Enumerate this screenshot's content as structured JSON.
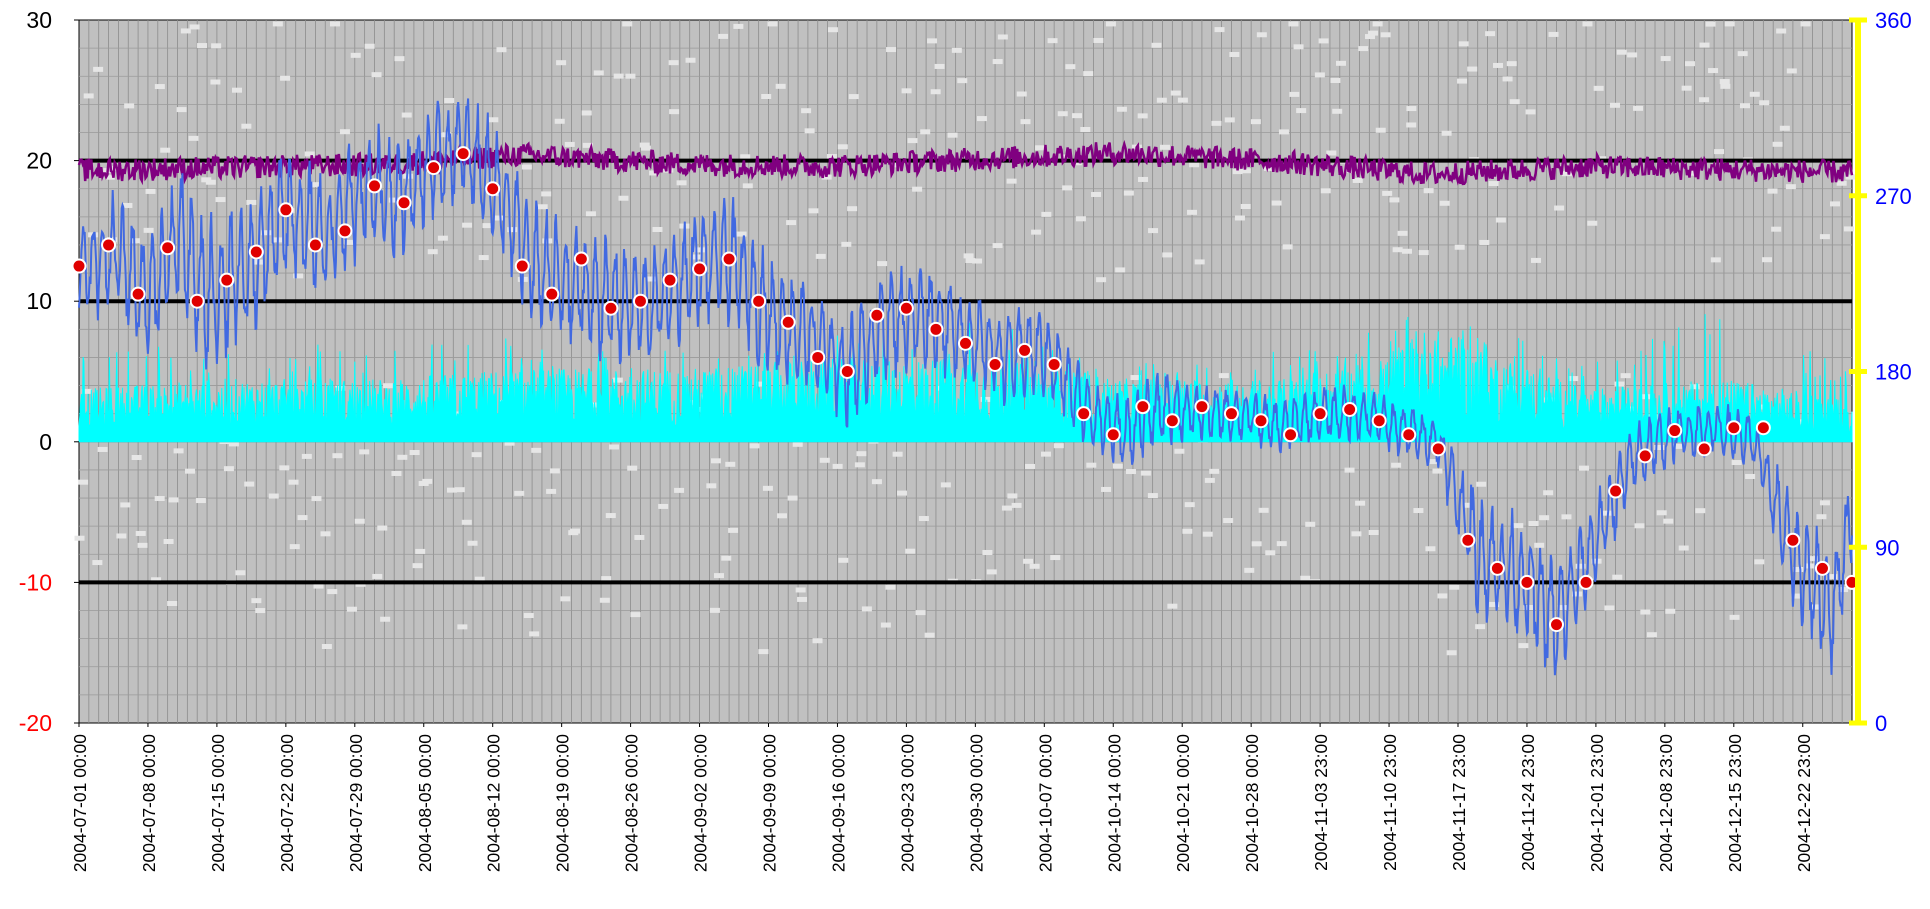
{
  "chart_data": {
    "type": "line",
    "title": "",
    "xlabel": "",
    "ylabel": "",
    "x_start": "2004-07-01",
    "x_end": "2004-12-28",
    "x_tick_labels": [
      "2004-07-01 00:00",
      "2004-07-08 00:00",
      "2004-07-15 00:00",
      "2004-07-22 00:00",
      "2004-07-29 00:00",
      "2004-08-05 00:00",
      "2004-08-12 00:00",
      "2004-08-19 00:00",
      "2004-08-26 00:00",
      "2004-09-02 00:00",
      "2004-09-09 00:00",
      "2004-09-16 00:00",
      "2004-09-23 00:00",
      "2004-09-30 00:00",
      "2004-10-07 00:00",
      "2004-10-14 00:00",
      "2004-10-21 00:00",
      "2004-10-28 00:00",
      "2004-11-03 23:00",
      "2004-11-10 23:00",
      "2004-11-17 23:00",
      "2004-11-24 23:00",
      "2004-12-01 23:00",
      "2004-12-08 23:00",
      "2004-12-15 23:00",
      "2004-12-22 23:00"
    ],
    "y_left": {
      "range": [
        -20,
        30
      ],
      "ticks": [
        {
          "value": 30,
          "label": "30",
          "color": "#000000"
        },
        {
          "value": 20,
          "label": "20",
          "color": "#000000"
        },
        {
          "value": 10,
          "label": "10",
          "color": "#000000"
        },
        {
          "value": 0,
          "label": "0",
          "color": "#000000"
        },
        {
          "value": -10,
          "label": "-10",
          "color": "#ff0000"
        },
        {
          "value": -20,
          "label": "-20",
          "color": "#ff0000"
        }
      ]
    },
    "y_right": {
      "range": [
        0,
        360
      ],
      "color": "#0000ff",
      "axis_color": "#ffff00",
      "ticks": [
        {
          "value": 360,
          "label": "360"
        },
        {
          "value": 270,
          "label": "270"
        },
        {
          "value": 180,
          "label": "180"
        },
        {
          "value": 90,
          "label": "90"
        },
        {
          "value": 0,
          "label": "0"
        }
      ]
    },
    "reference_lines": [
      20,
      10,
      -10
    ],
    "grid": true,
    "legend": "none",
    "colors": {
      "plot_background": "#c0c0c0",
      "temperature": "#4169e1",
      "daily_mean_marker": "#e00000",
      "speed": "#00ffff",
      "direction_upper": "#800080",
      "scatter": "#e6e6e6"
    },
    "series": [
      {
        "kind": "daily_mean_points",
        "axis": "left",
        "x": [
          "2004-07-01",
          "2004-07-04",
          "2004-07-07",
          "2004-07-10",
          "2004-07-13",
          "2004-07-16",
          "2004-07-19",
          "2004-07-22",
          "2004-07-25",
          "2004-07-28",
          "2004-07-31",
          "2004-08-03",
          "2004-08-06",
          "2004-08-09",
          "2004-08-12",
          "2004-08-15",
          "2004-08-18",
          "2004-08-21",
          "2004-08-24",
          "2004-08-27",
          "2004-08-30",
          "2004-09-02",
          "2004-09-05",
          "2004-09-08",
          "2004-09-11",
          "2004-09-14",
          "2004-09-17",
          "2004-09-20",
          "2004-09-23",
          "2004-09-26",
          "2004-09-29",
          "2004-10-02",
          "2004-10-05",
          "2004-10-08",
          "2004-10-11",
          "2004-10-14",
          "2004-10-17",
          "2004-10-20",
          "2004-10-23",
          "2004-10-26",
          "2004-10-29",
          "2004-11-01",
          "2004-11-04",
          "2004-11-07",
          "2004-11-10",
          "2004-11-13",
          "2004-11-16",
          "2004-11-19",
          "2004-11-22",
          "2004-11-25",
          "2004-11-28",
          "2004-12-01",
          "2004-12-04",
          "2004-12-07",
          "2004-12-10",
          "2004-12-13",
          "2004-12-16",
          "2004-12-19",
          "2004-12-22",
          "2004-12-25",
          "2004-12-28"
        ],
        "y": [
          12.5,
          14.0,
          10.5,
          13.8,
          10.0,
          11.5,
          13.5,
          16.5,
          14.0,
          15.0,
          18.2,
          17.0,
          19.5,
          20.5,
          18.0,
          12.5,
          10.5,
          13.0,
          9.5,
          10.0,
          11.5,
          12.3,
          13.0,
          10.0,
          8.5,
          6.0,
          5.0,
          9.0,
          9.5,
          8.0,
          7.0,
          5.5,
          6.5,
          5.5,
          2.0,
          0.5,
          2.5,
          1.5,
          2.5,
          2.0,
          1.5,
          0.5,
          2.0,
          2.3,
          1.5,
          0.5,
          -0.5,
          -7.0,
          -9.0,
          -10.0,
          -13.0,
          -10.0,
          -3.5,
          -1.0,
          0.8,
          -0.5,
          1.0,
          1.0,
          -7.0,
          -9.0,
          -10.0
        ]
      },
      {
        "kind": "hourly_temperature",
        "axis": "left",
        "x": [
          "2004-07-01",
          "2004-07-05",
          "2004-07-08",
          "2004-07-11",
          "2004-07-14",
          "2004-07-18",
          "2004-07-22",
          "2004-07-26",
          "2004-07-30",
          "2004-08-03",
          "2004-08-06",
          "2004-08-09",
          "2004-08-12",
          "2004-08-16",
          "2004-08-20",
          "2004-08-24",
          "2004-08-28",
          "2004-09-01",
          "2004-09-05",
          "2004-09-09",
          "2004-09-13",
          "2004-09-17",
          "2004-09-21",
          "2004-09-25",
          "2004-09-29",
          "2004-10-03",
          "2004-10-07",
          "2004-10-11",
          "2004-10-15",
          "2004-10-19",
          "2004-10-23",
          "2004-10-27",
          "2004-10-31",
          "2004-11-04",
          "2004-11-08",
          "2004-11-12",
          "2004-11-16",
          "2004-11-20",
          "2004-11-24",
          "2004-11-28",
          "2004-12-02",
          "2004-12-06",
          "2004-12-10",
          "2004-12-14",
          "2004-12-18",
          "2004-12-22",
          "2004-12-26",
          "2004-12-28"
        ],
        "y": [
          12.0,
          13.5,
          10.0,
          14.5,
          10.0,
          12.0,
          16.0,
          14.5,
          18.0,
          17.5,
          20.0,
          21.0,
          18.5,
          12.5,
          11.0,
          10.0,
          9.5,
          12.0,
          13.0,
          9.0,
          7.5,
          5.0,
          8.5,
          9.0,
          7.5,
          6.0,
          6.5,
          2.5,
          0.5,
          2.5,
          2.0,
          2.0,
          1.0,
          2.0,
          2.0,
          1.0,
          0.0,
          -8.0,
          -9.5,
          -13.0,
          -7.0,
          -1.0,
          0.5,
          1.0,
          0.0,
          -8.0,
          -12.0,
          -5.0
        ],
        "amplitude": [
          2.5,
          3.5,
          3.5,
          4.0,
          4.5,
          4.0,
          4.0,
          3.5,
          3.5,
          3.5,
          3.0,
          3.0,
          3.5,
          3.5,
          3.5,
          3.5,
          3.0,
          3.5,
          3.5,
          3.5,
          3.0,
          3.0,
          3.0,
          3.0,
          2.5,
          2.5,
          2.5,
          2.0,
          2.0,
          2.0,
          1.5,
          1.5,
          1.5,
          1.5,
          1.5,
          1.5,
          1.5,
          3.5,
          3.5,
          3.5,
          2.5,
          2.0,
          1.5,
          1.5,
          1.5,
          3.0,
          3.5,
          2.5
        ]
      },
      {
        "kind": "wind_speed",
        "axis": "left",
        "baseline": 0,
        "x": [
          "2004-07-01",
          "2004-07-15",
          "2004-08-01",
          "2004-08-15",
          "2004-09-01",
          "2004-09-15",
          "2004-10-01",
          "2004-10-15",
          "2004-11-01",
          "2004-11-10",
          "2004-11-15",
          "2004-12-01",
          "2004-12-15",
          "2004-12-28"
        ],
        "y": [
          2.5,
          3.0,
          3.0,
          3.5,
          3.5,
          4.0,
          4.0,
          3.0,
          3.0,
          4.0,
          5.5,
          2.5,
          3.0,
          2.0
        ],
        "peaks": [
          6.5,
          7.0,
          7.0,
          7.5,
          6.5,
          7.5,
          9.0,
          5.5,
          6.5,
          8.0,
          9.5,
          6.0,
          10.0,
          5.0
        ]
      },
      {
        "kind": "wind_direction_upper",
        "axis": "right",
        "x": [
          "2004-07-01",
          "2004-08-01",
          "2004-08-15",
          "2004-09-01",
          "2004-09-15",
          "2004-10-01",
          "2004-10-15",
          "2004-11-01",
          "2004-11-15",
          "2004-12-01",
          "2004-12-28"
        ],
        "y": [
          283,
          286,
          291,
          286,
          285,
          289,
          292,
          287,
          281,
          285,
          282
        ]
      }
    ]
  }
}
